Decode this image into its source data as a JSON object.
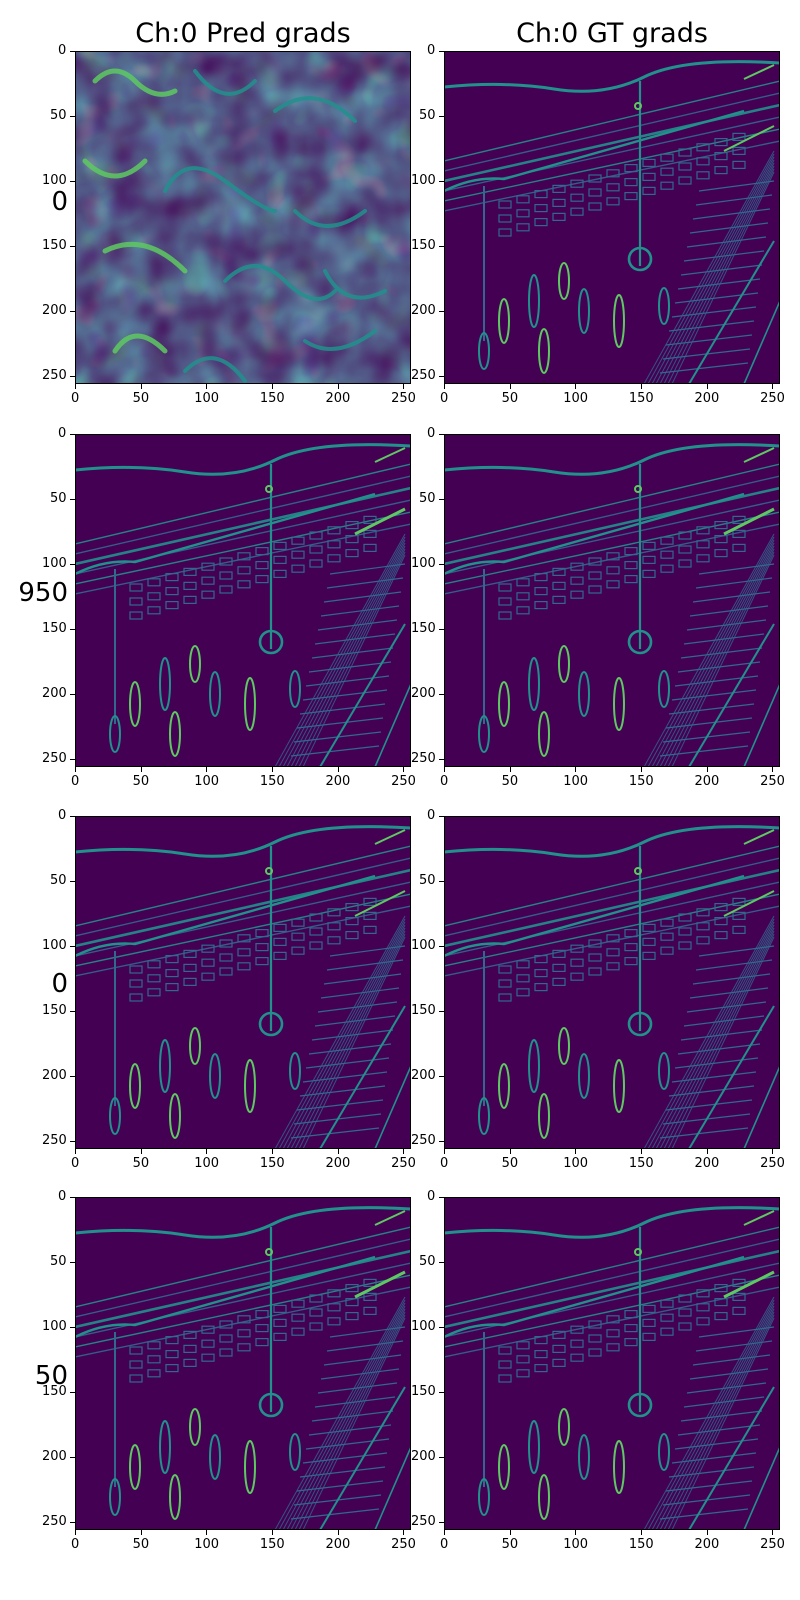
{
  "columns": [
    {
      "title": "Ch:0 Pred grads"
    },
    {
      "title": "Ch:0 GT grads"
    }
  ],
  "rows": [
    {
      "label": "0"
    },
    {
      "label": "950"
    },
    {
      "label": "0"
    },
    {
      "label": "50"
    }
  ],
  "axis_ticks": {
    "x": [
      "0",
      "50",
      "100",
      "150",
      "200",
      "250"
    ],
    "y": [
      "0",
      "50",
      "100",
      "150",
      "200",
      "250"
    ]
  },
  "image_content": {
    "prediction_top_left": "noise-like gradient blobs",
    "others": "edge-gradient image of a train in a station"
  },
  "colormap": {
    "dark": "#440154",
    "mid": "#31688e",
    "teal": "#21918c",
    "bright": "#5ec962",
    "yellow": "#fde725"
  }
}
